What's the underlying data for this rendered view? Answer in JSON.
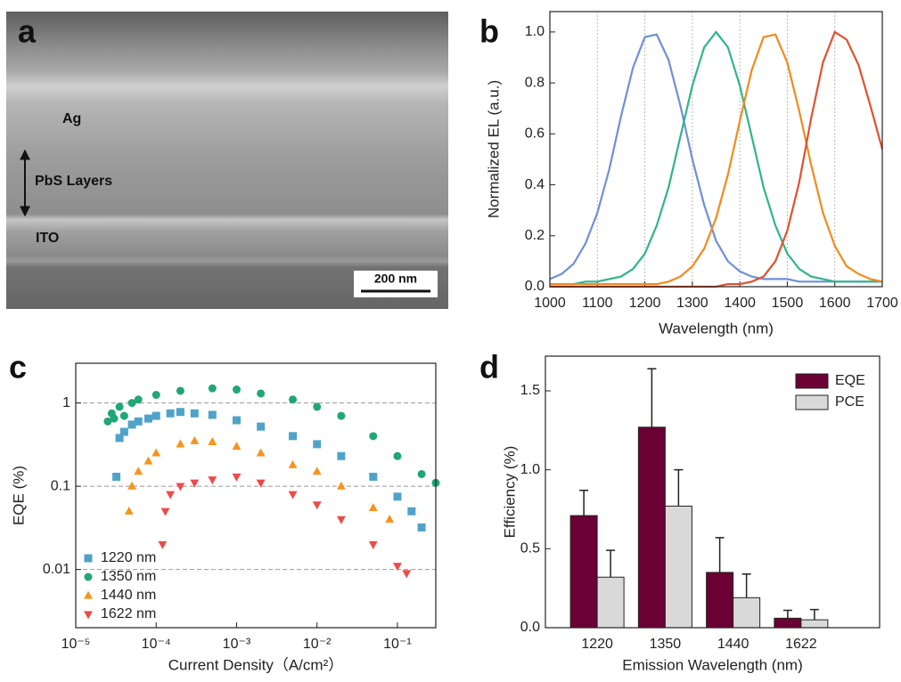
{
  "image": {
    "label": "a",
    "annotations": [
      "Ag",
      "PbS Layers",
      "ITO"
    ],
    "scale_bar": "200 nm"
  },
  "chart_data": [
    {
      "type": "line",
      "label": "b",
      "xlabel": "Wavelength (nm)",
      "ylabel": "Normalized EL (a.u.)",
      "x": [
        1000,
        1025,
        1050,
        1075,
        1100,
        1125,
        1150,
        1175,
        1200,
        1225,
        1250,
        1275,
        1300,
        1325,
        1350,
        1375,
        1400,
        1425,
        1450,
        1475,
        1500,
        1525,
        1550,
        1575,
        1600,
        1625,
        1650,
        1675,
        1700
      ],
      "series": [
        {
          "color": "#6f8fd6",
          "values": [
            0.03,
            0.05,
            0.09,
            0.17,
            0.29,
            0.46,
            0.67,
            0.86,
            0.98,
            0.99,
            0.89,
            0.71,
            0.5,
            0.32,
            0.18,
            0.1,
            0.06,
            0.04,
            0.03,
            0.03,
            0.03,
            0.02,
            0.02,
            0.02,
            0.02,
            0.02,
            0.02,
            0.02,
            0.02
          ]
        },
        {
          "color": "#2fb589",
          "values": [
            0.01,
            0.01,
            0.01,
            0.02,
            0.02,
            0.03,
            0.04,
            0.07,
            0.13,
            0.24,
            0.39,
            0.59,
            0.79,
            0.94,
            1.0,
            0.94,
            0.79,
            0.59,
            0.39,
            0.24,
            0.13,
            0.07,
            0.04,
            0.03,
            0.02,
            0.02,
            0.02,
            0.02,
            0.02
          ]
        },
        {
          "color": "#f28a1e",
          "values": [
            0.01,
            0.01,
            0.01,
            0.01,
            0.01,
            0.01,
            0.01,
            0.01,
            0.01,
            0.01,
            0.02,
            0.04,
            0.08,
            0.15,
            0.27,
            0.44,
            0.65,
            0.85,
            0.98,
            0.99,
            0.88,
            0.69,
            0.48,
            0.29,
            0.16,
            0.08,
            0.05,
            0.03,
            0.02
          ]
        },
        {
          "color": "#e2512f",
          "values": [
            0,
            0,
            0,
            0,
            0,
            0,
            0,
            0,
            0,
            0,
            0,
            0,
            0,
            0,
            0,
            0.01,
            0.01,
            0.02,
            0.04,
            0.1,
            0.22,
            0.41,
            0.66,
            0.88,
            1.0,
            0.97,
            0.87,
            0.71,
            0.54
          ]
        }
      ],
      "xlim": [
        1000,
        1700
      ],
      "xticks": [
        1000,
        1100,
        1200,
        1300,
        1400,
        1500,
        1600,
        1700
      ],
      "ylim": [
        0,
        1.08
      ],
      "yticks": [
        {
          "value": 0,
          "label": "0.0"
        },
        0.2,
        0.4,
        0.6,
        0.8,
        {
          "value": 1,
          "label": "1.0"
        }
      ],
      "grid": "x"
    },
    {
      "type": "scatter",
      "label": "c",
      "xlabel": "Current Density（A/cm²）",
      "ylabel": "EQE (%)",
      "xscale": "log",
      "yscale": "log",
      "xlim": [
        1e-05,
        0.3
      ],
      "xticks": [
        {
          "value": 1e-05,
          "label": "10⁻⁵"
        },
        {
          "value": 0.0001,
          "label": "10⁻⁴"
        },
        {
          "value": 0.001,
          "label": "10⁻³"
        },
        {
          "value": 0.01,
          "label": "10⁻²"
        },
        {
          "value": 0.1,
          "label": "10⁻¹"
        }
      ],
      "ylim": [
        0.002,
        3
      ],
      "yticks": [
        0.01,
        0.1,
        1
      ],
      "grid": "y",
      "legend": "lower left",
      "series": [
        {
          "name": "1220 nm",
          "color": "#4fa3c9",
          "marker": "square",
          "x": [
            3.2e-05,
            3.5e-05,
            4e-05,
            5e-05,
            6e-05,
            8e-05,
            0.0001,
            0.00015,
            0.0002,
            0.0003,
            0.0005,
            0.001,
            0.002,
            0.005,
            0.01,
            0.02,
            0.05,
            0.1,
            0.15,
            0.2
          ],
          "values": [
            0.13,
            0.38,
            0.45,
            0.55,
            0.6,
            0.65,
            0.7,
            0.75,
            0.78,
            0.75,
            0.72,
            0.62,
            0.52,
            0.4,
            0.32,
            0.23,
            0.13,
            0.075,
            0.05,
            0.032
          ]
        },
        {
          "name": "1350 nm",
          "color": "#1fa775",
          "marker": "circle",
          "x": [
            2.5e-05,
            2.8e-05,
            3e-05,
            3.5e-05,
            4e-05,
            5e-05,
            6e-05,
            0.0001,
            0.0002,
            0.0005,
            0.001,
            0.002,
            0.005,
            0.01,
            0.02,
            0.05,
            0.1,
            0.2,
            0.3
          ],
          "values": [
            0.6,
            0.75,
            0.65,
            0.9,
            0.7,
            1.0,
            1.1,
            1.25,
            1.4,
            1.5,
            1.45,
            1.3,
            1.1,
            0.9,
            0.7,
            0.4,
            0.23,
            0.14,
            0.11
          ]
        },
        {
          "name": "1440 nm",
          "color": "#f7941d",
          "marker": "triangle-up",
          "x": [
            4.6e-05,
            5e-05,
            6e-05,
            8e-05,
            0.0001,
            0.0002,
            0.0003,
            0.0005,
            0.001,
            0.002,
            0.005,
            0.01,
            0.02,
            0.05,
            0.08
          ],
          "values": [
            0.05,
            0.1,
            0.15,
            0.2,
            0.25,
            0.32,
            0.35,
            0.34,
            0.3,
            0.25,
            0.18,
            0.15,
            0.1,
            0.055,
            0.04
          ]
        },
        {
          "name": "1622 nm",
          "color": "#ef4a4a",
          "marker": "triangle-down",
          "x": [
            0.00012,
            0.00013,
            0.00015,
            0.0002,
            0.0003,
            0.0005,
            0.001,
            0.002,
            0.005,
            0.01,
            0.02,
            0.05,
            0.1,
            0.13
          ],
          "values": [
            0.02,
            0.05,
            0.08,
            0.1,
            0.11,
            0.12,
            0.13,
            0.11,
            0.08,
            0.06,
            0.04,
            0.02,
            0.011,
            0.009
          ]
        }
      ]
    },
    {
      "type": "bar",
      "label": "d",
      "xlabel": "Emission Wavelength (nm)",
      "ylabel": "Efficiency (%)",
      "categories": [
        "1220",
        "1350",
        "1440",
        "1622"
      ],
      "ylim": [
        0,
        1.72
      ],
      "yticks": [
        {
          "value": 0,
          "label": "0.0"
        },
        0.5,
        {
          "value": 1,
          "label": "1.0"
        },
        1.5
      ],
      "legend": "upper right",
      "series": [
        {
          "name": "EQE",
          "color": "#6b0035",
          "values": [
            0.71,
            1.27,
            0.35,
            0.06
          ],
          "errors": [
            0.16,
            0.37,
            0.22,
            0.05
          ]
        },
        {
          "name": "PCE",
          "color": "#d9d9d9",
          "values": [
            0.32,
            0.77,
            0.19,
            0.05
          ],
          "errors": [
            0.17,
            0.23,
            0.15,
            0.065
          ]
        }
      ]
    }
  ]
}
